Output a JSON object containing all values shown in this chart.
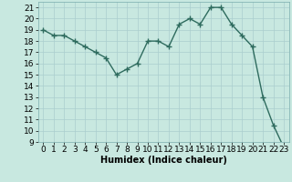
{
  "x": [
    0,
    1,
    2,
    3,
    4,
    5,
    6,
    7,
    8,
    9,
    10,
    11,
    12,
    13,
    14,
    15,
    16,
    17,
    18,
    19,
    20,
    21,
    22,
    23
  ],
  "y": [
    19,
    18.5,
    18.5,
    18,
    17.5,
    17,
    16.5,
    15,
    15.5,
    16,
    18,
    18,
    17.5,
    19.5,
    20,
    19.5,
    21,
    21,
    19.5,
    18.5,
    17.5,
    13,
    10.5,
    8.5
  ],
  "line_color": "#2e6b5e",
  "marker": "+",
  "marker_size": 4,
  "marker_lw": 1.0,
  "line_width": 1.0,
  "bg_color": "#c8e8e0",
  "grid_color": "#aacece",
  "xlabel": "Humidex (Indice chaleur)",
  "xlim": [
    -0.5,
    23.5
  ],
  "ylim": [
    9,
    21.5
  ],
  "yticks": [
    9,
    10,
    11,
    12,
    13,
    14,
    15,
    16,
    17,
    18,
    19,
    20,
    21
  ],
  "xticks": [
    0,
    1,
    2,
    3,
    4,
    5,
    6,
    7,
    8,
    9,
    10,
    11,
    12,
    13,
    14,
    15,
    16,
    17,
    18,
    19,
    20,
    21,
    22,
    23
  ],
  "xlabel_fontsize": 7,
  "tick_fontsize": 6.5
}
